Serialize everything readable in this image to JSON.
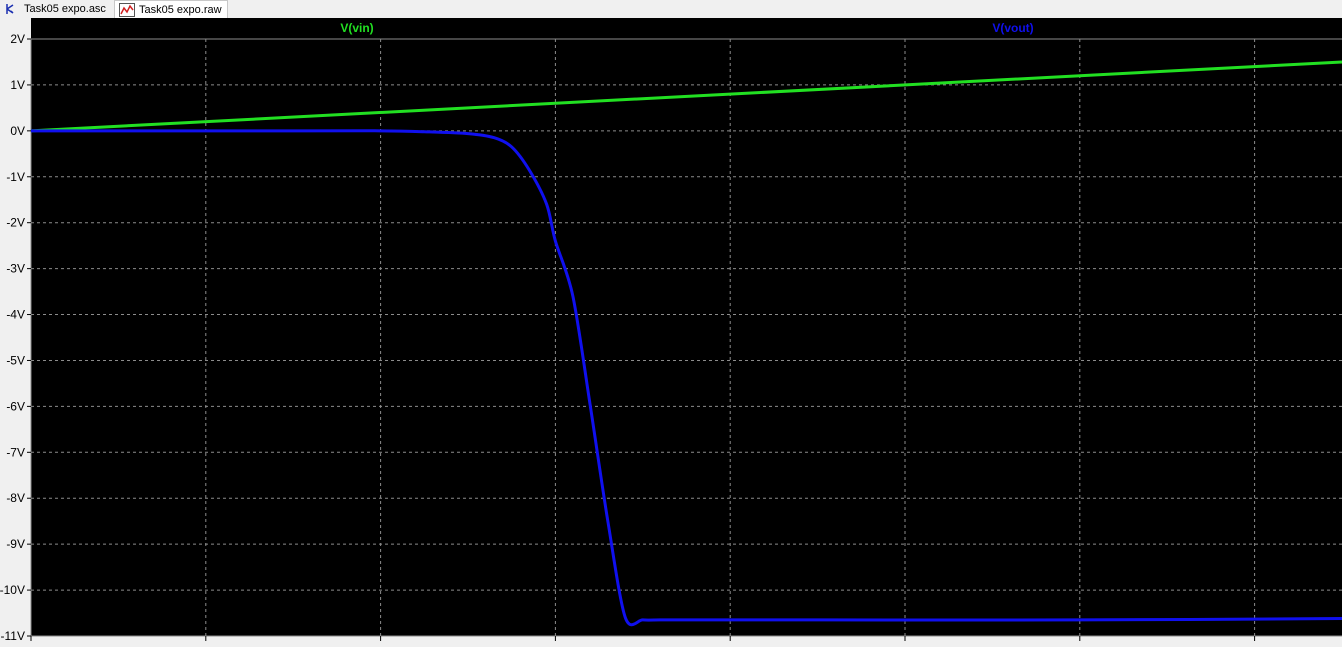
{
  "tabs": [
    {
      "label": "Task05 expo.asc",
      "icon": "schematic-icon",
      "active": false
    },
    {
      "label": "Task05 expo.raw",
      "icon": "waveform-icon",
      "active": true
    }
  ],
  "colors": {
    "plot_background": "#000000",
    "grid": "#8c8c8c",
    "vin": "#22e022",
    "vout": "#1010ee",
    "axis_area": "#f0f0f0"
  },
  "chart_data": {
    "type": "line",
    "title": "",
    "xlabel": "",
    "ylabel": "",
    "x_divisions": 7.5,
    "xlim": [
      0,
      1.5
    ],
    "ylim": [
      -11,
      2
    ],
    "y_ticks": [
      "2V",
      "1V",
      "0V",
      "-1V",
      "-2V",
      "-3V",
      "-4V",
      "-5V",
      "-6V",
      "-7V",
      "-8V",
      "-9V",
      "-10V",
      "-11V"
    ],
    "grid": true,
    "series": [
      {
        "name": "V(vin)",
        "x": [
          0,
          1.5
        ],
        "y": [
          0,
          1.5
        ]
      },
      {
        "name": "V(vout)",
        "x": [
          0,
          0.3,
          0.4,
          0.45,
          0.5,
          0.53,
          0.55,
          0.57,
          0.59,
          0.6,
          0.62,
          0.64,
          0.66,
          0.68,
          0.7,
          0.72,
          0.75,
          0.9,
          1.2,
          1.5
        ],
        "y": [
          0,
          0,
          0,
          -0.02,
          -0.06,
          -0.15,
          -0.35,
          -0.85,
          -1.6,
          -2.4,
          -3.6,
          -6.0,
          -8.5,
          -10.6,
          -10.65,
          -10.65,
          -10.65,
          -10.65,
          -10.65,
          -10.62
        ]
      }
    ]
  }
}
